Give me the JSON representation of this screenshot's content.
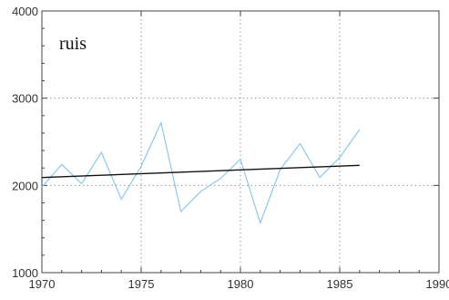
{
  "chart_data": {
    "type": "line",
    "annotation": "ruis",
    "xlim": [
      1970,
      1990
    ],
    "ylim": [
      1000,
      4000
    ],
    "x_ticks": [
      1970,
      1975,
      1980,
      1985,
      1990
    ],
    "y_ticks": [
      1000,
      2000,
      3000,
      4000
    ],
    "x_tick_labels": [
      "1970",
      "1975",
      "1980",
      "1985",
      "1990"
    ],
    "y_tick_labels": [
      "1000",
      "2000",
      "3000",
      "4000"
    ],
    "grid": true,
    "series": [
      {
        "role": "observed",
        "color": "#8ec8ec",
        "x": [
          1970,
          1971,
          1972,
          1973,
          1974,
          1975,
          1976,
          1977,
          1978,
          1979,
          1980,
          1981,
          1982,
          1983,
          1984,
          1985,
          1986
        ],
        "values": [
          1980,
          2240,
          2020,
          2380,
          1840,
          2220,
          2720,
          1700,
          1930,
          2080,
          2300,
          1570,
          2180,
          2480,
          2090,
          2320,
          2640
        ]
      },
      {
        "role": "trend",
        "color": "#111111",
        "x": [
          1970,
          1986
        ],
        "values": [
          2090,
          2230
        ]
      }
    ]
  }
}
